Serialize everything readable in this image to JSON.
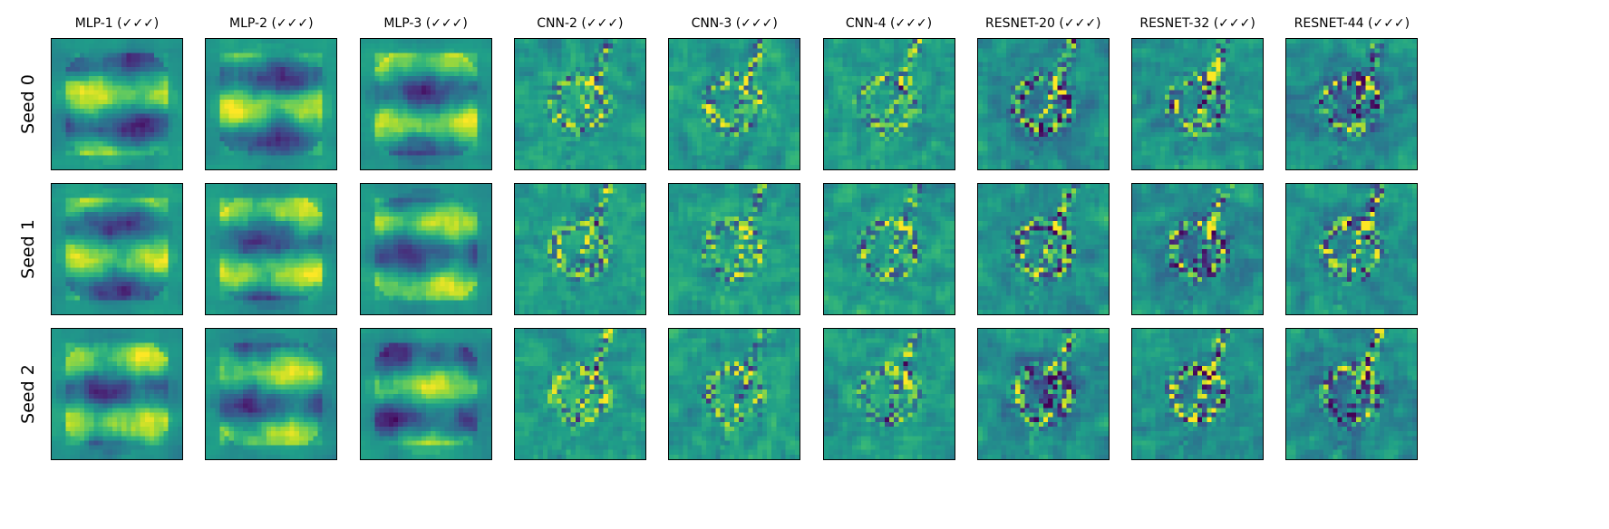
{
  "figure": {
    "columns": [
      {
        "label": "MLP-1 (✓✓✓)",
        "family": "mlp"
      },
      {
        "label": "MLP-2 (✓✓✓)",
        "family": "mlp"
      },
      {
        "label": "MLP-3 (✓✓✓)",
        "family": "mlp"
      },
      {
        "label": "CNN-2 (✓✓✓)",
        "family": "cnn"
      },
      {
        "label": "CNN-3 (✓✓✓)",
        "family": "cnn"
      },
      {
        "label": "CNN-4 (✓✓✓)",
        "family": "cnn"
      },
      {
        "label": "RESNET-20 (✓✓✓)",
        "family": "resnet"
      },
      {
        "label": "RESNET-32 (✓✓✓)",
        "family": "resnet"
      },
      {
        "label": "RESNET-44 (✓✓✓)",
        "family": "resnet"
      }
    ],
    "rows": [
      {
        "label": "Seed 0"
      },
      {
        "label": "Seed 1"
      },
      {
        "label": "Seed 2"
      }
    ],
    "colormap": "viridis",
    "colors": {
      "viridis": [
        "#440154",
        "#482878",
        "#3e4989",
        "#31688e",
        "#26828e",
        "#1f9e89",
        "#35b779",
        "#6ece58",
        "#b5de2b",
        "#fde725"
      ],
      "frame": "#000000",
      "background": "#ffffff"
    }
  }
}
